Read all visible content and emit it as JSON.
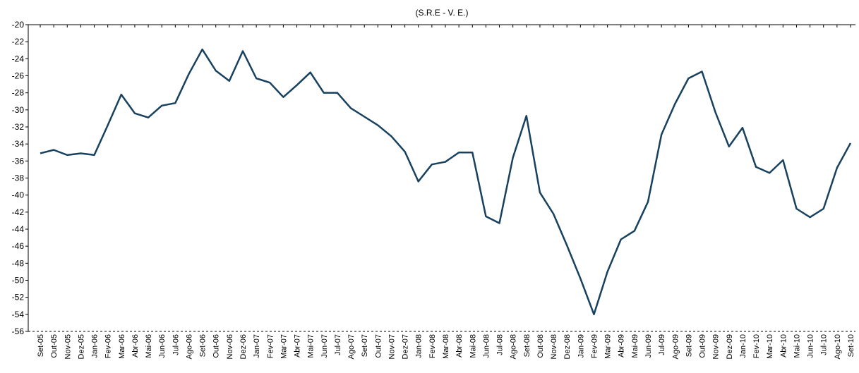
{
  "chart_data": {
    "type": "line",
    "title": "(S.R.E - V. E.)",
    "categories": [
      "Set-05",
      "Out-05",
      "Nov-05",
      "Dez-05",
      "Jan-06",
      "Fev-06",
      "Mar-06",
      "Abr-06",
      "Mai-06",
      "Jun-06",
      "Jul-06",
      "Ago-06",
      "Set-06",
      "Out-06",
      "Nov-06",
      "Dez-06",
      "Jan-07",
      "Fev-07",
      "Mar-07",
      "Abr-07",
      "Mai-07",
      "Jun-07",
      "Jul-07",
      "Ago-07",
      "Set-07",
      "Out-07",
      "Nov-07",
      "Dez-07",
      "Jan-08",
      "Fev-08",
      "Mar-08",
      "Abr-08",
      "Mai-08",
      "Jun-08",
      "Jul-08",
      "Ago-08",
      "Set-08",
      "Out-08",
      "Nov-08",
      "Dez-08",
      "Jan-09",
      "Fev-09",
      "Mar-09",
      "Abr-09",
      "Mai-09",
      "Jun-09",
      "Jul-09",
      "Ago-09",
      "Set-09",
      "Out-09",
      "Nov-09",
      "Dez-09",
      "Jan-10",
      "Fev-10",
      "Mar-10",
      "Abr-10",
      "Mai-10",
      "Jun-10",
      "Jul-10",
      "Ago-10",
      "Set-10"
    ],
    "series": [
      {
        "color": "#17415e",
        "values": [
          -35.1,
          -34.7,
          -35.3,
          -35.1,
          -35.3,
          -31.8,
          -28.2,
          -30.4,
          -30.9,
          -29.5,
          -29.2,
          -25.8,
          -22.9,
          -25.4,
          -26.6,
          -23.1,
          -26.3,
          -26.8,
          -28.5,
          -27.1,
          -25.6,
          -28.0,
          -28.0,
          -29.8,
          -30.8,
          -31.8,
          -33.1,
          -34.9,
          -38.4,
          -36.4,
          -36.1,
          -35.0,
          -35.0,
          -42.5,
          -43.3,
          -35.6,
          -30.7,
          -39.7,
          -42.2,
          -45.9,
          -49.8,
          -54.0,
          -49.0,
          -45.2,
          -44.2,
          -40.8,
          -32.9,
          -29.3,
          -26.3,
          -25.5,
          -30.3,
          -34.3,
          -32.1,
          -36.7,
          -37.4,
          -35.9,
          -41.6,
          -42.6,
          -41.6,
          -36.8,
          -33.9
        ]
      }
    ],
    "ylim": [
      -56,
      -20
    ],
    "yticks": [
      -20,
      -22,
      -24,
      -26,
      -28,
      -30,
      -32,
      -34,
      -36,
      -38,
      -40,
      -42,
      -44,
      -46,
      -48,
      -50,
      -52,
      -54,
      -56
    ]
  }
}
